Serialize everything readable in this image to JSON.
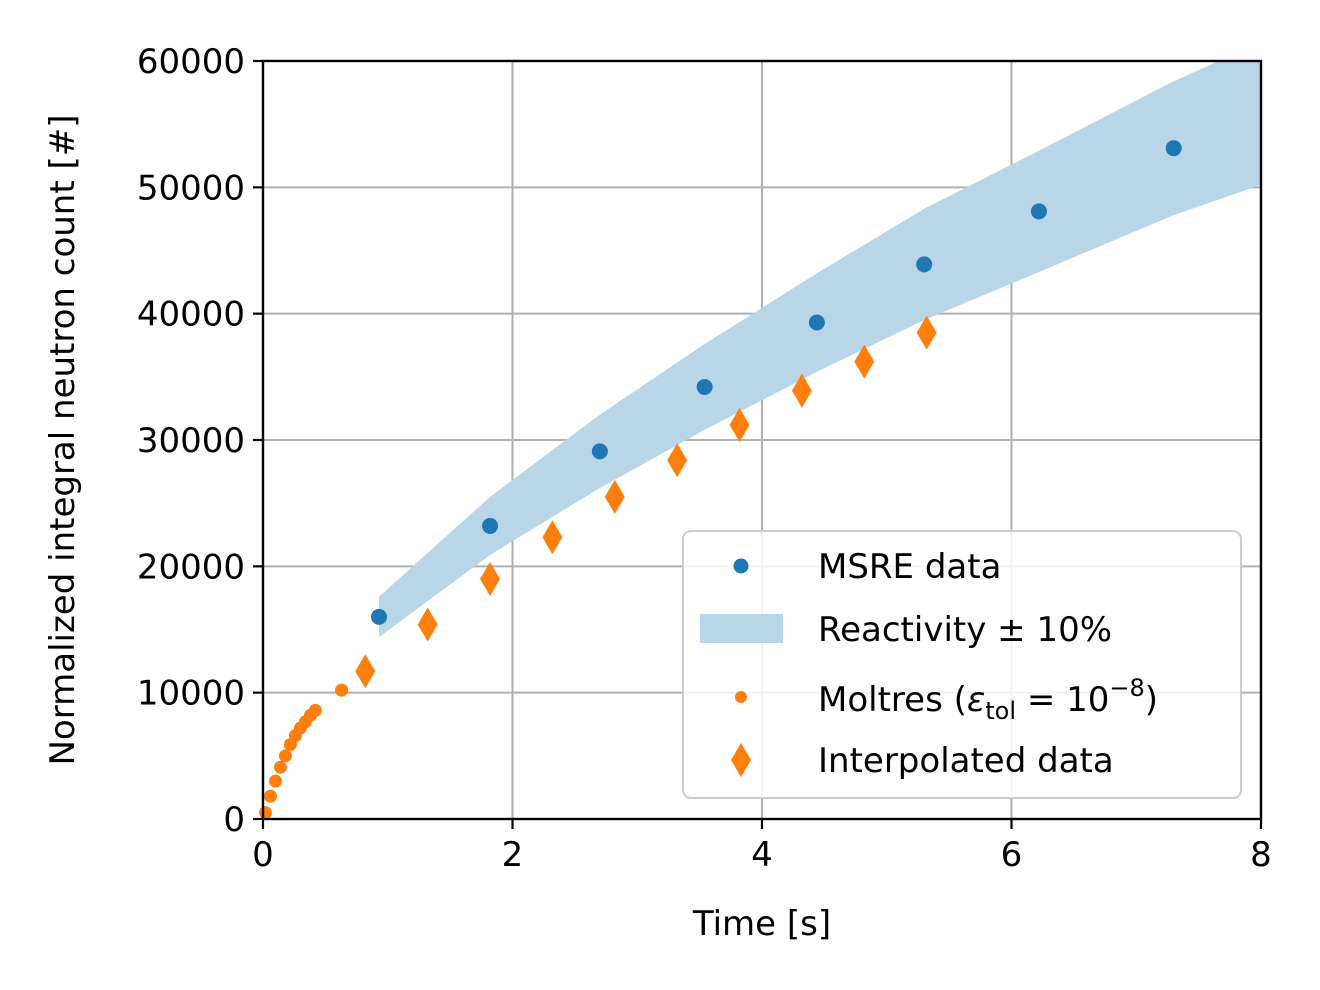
{
  "chart_data": {
    "type": "scatter",
    "xlabel": "Time [s]",
    "ylabel": "Normalized integral neutron count [#]",
    "xlim": [
      0,
      8
    ],
    "ylim": [
      0,
      60000
    ],
    "xticks": [
      "0",
      "2",
      "4",
      "6",
      "8"
    ],
    "yticks": [
      "0",
      "10000",
      "20000",
      "30000",
      "40000",
      "50000",
      "60000"
    ],
    "grid": true,
    "legend_position": "lower-right",
    "colors": {
      "blue": "#1f77b4",
      "orange": "#ff7f0e",
      "band": "#b9d5e8"
    },
    "series": [
      {
        "name": "MSRE data",
        "kind": "scatter",
        "marker": "circle",
        "color": "#1f77b4",
        "x": [
          0.93,
          1.82,
          2.7,
          3.54,
          4.44,
          5.3,
          6.22,
          7.3
        ],
        "y": [
          16000,
          23200,
          29100,
          34200,
          39300,
          43900,
          48100,
          53100
        ]
      },
      {
        "name": "Reactivity ± 10%",
        "kind": "band",
        "color": "#b9d5e8",
        "x": [
          0.93,
          1.82,
          2.7,
          3.54,
          4.44,
          5.3,
          6.22,
          7.3,
          8.0
        ],
        "y_lower": [
          14400,
          20900,
          26200,
          30800,
          35400,
          39500,
          43300,
          47800,
          50200
        ],
        "y_upper": [
          17600,
          25500,
          32000,
          37600,
          43200,
          48300,
          52900,
          58400,
          61500
        ]
      },
      {
        "name": "Moltres (εtol = 10−8)",
        "kind": "scatter",
        "marker": "small-circle",
        "color": "#ff7f0e",
        "x": [
          0.02,
          0.06,
          0.1,
          0.14,
          0.18,
          0.22,
          0.26,
          0.3,
          0.34,
          0.38,
          0.42,
          0.63
        ],
        "y": [
          500,
          1800,
          3000,
          4100,
          5000,
          5900,
          6600,
          7200,
          7700,
          8200,
          8600,
          10200
        ]
      },
      {
        "name": "Interpolated data",
        "kind": "scatter",
        "marker": "diamond",
        "color": "#ff7f0e",
        "x": [
          0.82,
          1.32,
          1.82,
          2.32,
          2.82,
          3.32,
          3.82,
          4.32,
          4.82,
          5.32
        ],
        "y": [
          11700,
          15400,
          19000,
          22300,
          25500,
          28400,
          31200,
          33900,
          36200,
          38500
        ]
      }
    ]
  },
  "legend": {
    "msre_label": "MSRE data",
    "band_label": "Reactivity ± 10%",
    "moltres_prefix": "Moltres (",
    "moltres_eps": "ε",
    "moltres_sub": "tol",
    "moltres_eq": " = 10",
    "moltres_exp": "−8",
    "moltres_suffix": ")",
    "interp_label": "Interpolated data"
  }
}
